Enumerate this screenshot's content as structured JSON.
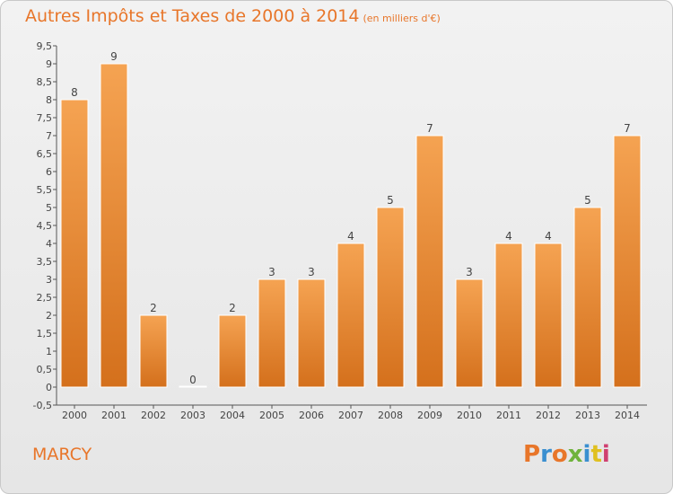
{
  "header": {
    "title": "Autres Impôts et Taxes de 2000 à 2014",
    "subtitle": "(en milliers d'€)"
  },
  "commune": "MARCY",
  "logo": {
    "text": "Proxiti",
    "colors": [
      "#e8762a",
      "#3a8fd0",
      "#e8762a",
      "#6fb33c",
      "#3a8fd0",
      "#e0c020",
      "#d04070"
    ]
  },
  "colors": {
    "bar_top": "#f5a352",
    "bar_bottom": "#d4701c",
    "accent": "#e8762a"
  },
  "chart_data": {
    "type": "bar",
    "categories": [
      "2000",
      "2001",
      "2002",
      "2003",
      "2004",
      "2005",
      "2006",
      "2007",
      "2008",
      "2009",
      "2010",
      "2011",
      "2012",
      "2013",
      "2014"
    ],
    "values": [
      8,
      9,
      2,
      0,
      2,
      3,
      3,
      4,
      5,
      7,
      3,
      4,
      4,
      5,
      7
    ],
    "data_labels": [
      "8",
      "9",
      "2",
      "0",
      "2",
      "3",
      "3",
      "4",
      "5",
      "7",
      "3",
      "4",
      "4",
      "5",
      "7"
    ],
    "yticks": [
      "-0,5",
      "0",
      "0,5",
      "1",
      "1,5",
      "2",
      "2,5",
      "3",
      "3,5",
      "4",
      "4,5",
      "5",
      "5,5",
      "6",
      "6,5",
      "7",
      "7,5",
      "8",
      "8,5",
      "9",
      "9,5"
    ],
    "ytick_values": [
      -0.5,
      0,
      0.5,
      1,
      1.5,
      2,
      2.5,
      3,
      3.5,
      4,
      4.5,
      5,
      5.5,
      6,
      6.5,
      7,
      7.5,
      8,
      8.5,
      9,
      9.5
    ],
    "ylim": [
      -0.5,
      9.5
    ],
    "grid": false,
    "title": "Autres Impôts et Taxes de 2000 à 2014",
    "ylabel": "",
    "xlabel": ""
  }
}
